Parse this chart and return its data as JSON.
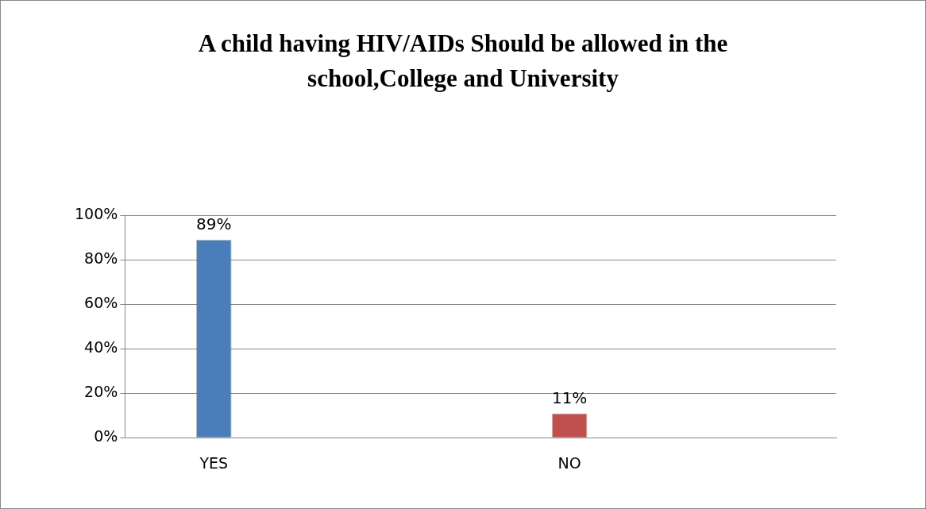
{
  "chart_data": {
    "type": "bar",
    "title": "A child having HIV/AIDs Should be allowed in the school,College and University",
    "categories": [
      "YES",
      null,
      "NO",
      null
    ],
    "values": [
      89,
      null,
      11,
      null
    ],
    "colors": [
      "#4a7ebb",
      "#4a7ebb",
      "#c0504d",
      "#c0504d"
    ],
    "value_labels": [
      "89%",
      null,
      "11%",
      null
    ],
    "ylim": [
      0,
      100
    ],
    "yticks": [
      {
        "value": 0,
        "label": "0%"
      },
      {
        "value": 20,
        "label": "20%"
      },
      {
        "value": 40,
        "label": "40%"
      },
      {
        "value": 60,
        "label": "60%"
      },
      {
        "value": 80,
        "label": "80%"
      },
      {
        "value": 100,
        "label": "100%"
      }
    ],
    "grid": "y",
    "legend": false
  }
}
